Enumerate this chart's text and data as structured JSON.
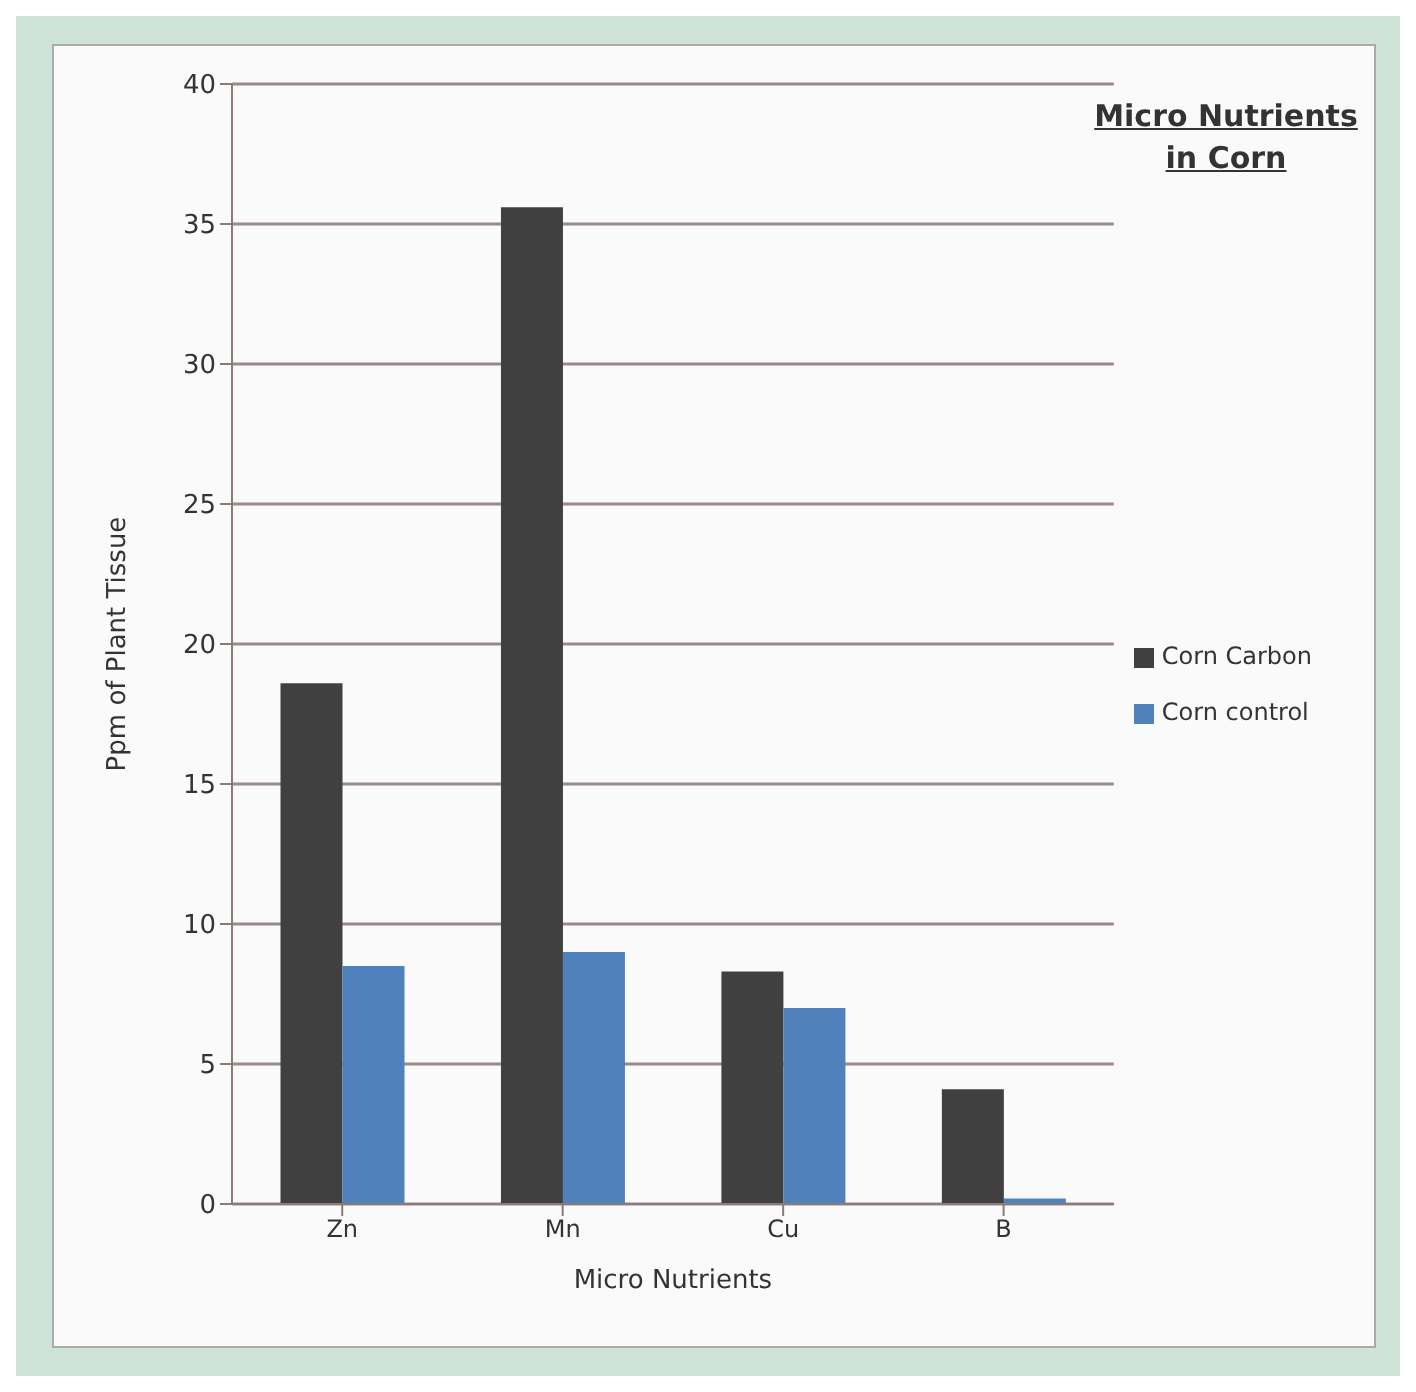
{
  "chart_data": {
    "type": "bar",
    "title": "Micro Nutrients in Corn",
    "xlabel": "Micro Nutrients",
    "ylabel": "Ppm of Plant Tissue",
    "categories": [
      "Zn",
      "Mn",
      "Cu",
      "B"
    ],
    "series": [
      {
        "name": "Corn Carbon",
        "color": "#404040",
        "values": [
          18.6,
          35.6,
          8.3,
          4.1
        ]
      },
      {
        "name": "Corn control",
        "color": "#4f81bd",
        "values": [
          8.5,
          9.0,
          7.0,
          0.2
        ]
      }
    ],
    "ylim": [
      0,
      40
    ],
    "yticks": [
      0,
      5,
      10,
      15,
      20,
      25,
      30,
      35,
      40
    ],
    "grid": "y",
    "legend": "right"
  }
}
